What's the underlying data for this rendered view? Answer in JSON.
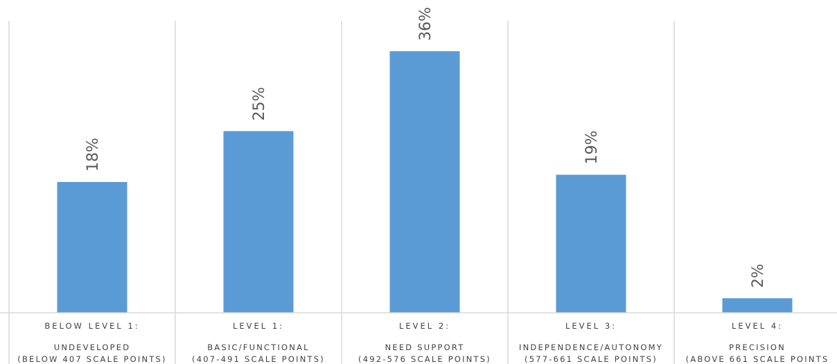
{
  "chart_data": {
    "type": "bar",
    "title": "",
    "xlabel": "",
    "ylabel": "",
    "ylim": [
      0,
      40
    ],
    "grid": false,
    "legend": "none",
    "bar_color": "#5b9bd5",
    "categories": [
      {
        "line1": "BELOW LEVEL 1:",
        "line2": "UNDEVELOPED",
        "line3": "(BELOW 407 SCALE POINTS)"
      },
      {
        "line1": "LEVEL 1:",
        "line2": "BASIC/FUNCTIONAL",
        "line3": "(407-491 SCALE POINTS)"
      },
      {
        "line1": "LEVEL 2:",
        "line2": "NEED SUPPORT",
        "line3": "(492-576 SCALE POINTS)"
      },
      {
        "line1": "LEVEL 3:",
        "line2": "INDEPENDENCE/AUTONOMY",
        "line3": "(577-661 SCALE POINTS)"
      },
      {
        "line1": "LEVEL 4:",
        "line2": "PRECISION",
        "line3": "(ABOVE 661 SCALE POINTS"
      }
    ],
    "values": [
      18,
      25,
      36,
      19,
      2
    ],
    "data_labels": [
      "18%",
      "25%",
      "36%",
      "19%",
      "2%"
    ]
  }
}
